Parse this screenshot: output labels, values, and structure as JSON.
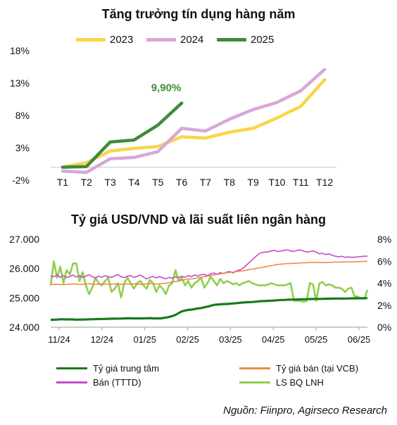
{
  "chart_data": [
    {
      "type": "line",
      "title": "Tăng trưởng tín dụng hàng năm",
      "categories": [
        "T1",
        "T2",
        "T3",
        "T4",
        "T5",
        "T6",
        "T7",
        "T8",
        "T9",
        "T10",
        "T11",
        "T12"
      ],
      "y_ticks": [
        "18%",
        "13%",
        "8%",
        "3%",
        "-2%"
      ],
      "ylim": [
        -2,
        18
      ],
      "series": [
        {
          "name": "2023",
          "color": "#F9D54A",
          "values": [
            0.0,
            0.7,
            2.5,
            2.9,
            3.2,
            4.7,
            4.5,
            5.4,
            6.0,
            7.6,
            9.4,
            13.5
          ]
        },
        {
          "name": "2024",
          "color": "#D8A7D8",
          "values": [
            -0.6,
            -0.8,
            1.3,
            1.5,
            2.4,
            6.0,
            5.6,
            7.4,
            8.9,
            10.0,
            11.8,
            15.1
          ]
        },
        {
          "name": "2025",
          "color": "#3F8B3A",
          "values": [
            0.0,
            0.1,
            3.9,
            4.2,
            6.5,
            9.9,
            null,
            null,
            null,
            null,
            null,
            null
          ]
        }
      ],
      "annotation": {
        "text": "9,90%",
        "color": "#3F8B3A"
      },
      "legend_position": "top"
    },
    {
      "type": "line",
      "title": "Tỷ giá USD/VND và lãi suất liên ngân hàng",
      "x_ticks": [
        "11/24",
        "12/24",
        "01/25",
        "02/25",
        "03/25",
        "04/25",
        "05/25",
        "06/25"
      ],
      "y_left_ticks": [
        "27.000",
        "26.000",
        "25.000",
        "24.000"
      ],
      "y_right_ticks": [
        "8%",
        "6%",
        "4%",
        "2%",
        "0%"
      ],
      "ylim_left": [
        24000,
        27000
      ],
      "ylim_right": [
        0,
        8
      ],
      "series": [
        {
          "name": "Tỷ giá trung tâm",
          "axis": "left",
          "color": "#1A7A1A",
          "values": [
            24250,
            24255,
            24260,
            24270,
            24268,
            24265,
            24270,
            24265,
            24258,
            24260,
            24262,
            24265,
            24268,
            24270,
            24275,
            24278,
            24280,
            24282,
            24285,
            24290,
            24290,
            24292,
            24295,
            24300,
            24303,
            24305,
            24300,
            24302,
            24300,
            24302,
            24305,
            24310,
            24300,
            24303,
            24300,
            24310,
            24330,
            24350,
            24380,
            24420,
            24480,
            24540,
            24570,
            24590,
            24600,
            24620,
            24640,
            24650,
            24680,
            24700,
            24730,
            24760,
            24770,
            24780,
            24790,
            24790,
            24800,
            24810,
            24820,
            24830,
            24840,
            24850,
            24855,
            24860,
            24870,
            24880,
            24890,
            24890,
            24900,
            24905,
            24910,
            24920,
            24930,
            24930,
            24935,
            24940,
            24940,
            24945,
            24950,
            24950,
            24955,
            24960,
            24962,
            24965,
            24966,
            24968,
            24970,
            24972,
            24975,
            24978,
            24980,
            24975,
            24978,
            24980,
            24982,
            24985,
            24985,
            24988,
            24990,
            24992
          ]
        },
        {
          "name": "Tỷ giá bán (tại VCB)",
          "axis": "left",
          "color": "#EE8B47",
          "values": [
            25450,
            25460,
            25460,
            25455,
            25450,
            25460,
            25470,
            25480,
            25470,
            25460,
            25465,
            25470,
            25480,
            25470,
            25460,
            25470,
            25480,
            25470,
            25465,
            25470,
            25475,
            25480,
            25460,
            25470,
            25475,
            25470,
            25480,
            25470,
            25460,
            25470,
            25480,
            25490,
            25480,
            25470,
            25480,
            25490,
            25500,
            25520,
            25540,
            25560,
            25580,
            25600,
            25620,
            25640,
            25650,
            25660,
            25680,
            25700,
            25720,
            25740,
            25760,
            25780,
            25800,
            25820,
            25840,
            25860,
            25870,
            25880,
            25900,
            25910,
            25920,
            25940,
            25960,
            25980,
            26000,
            26020,
            26040,
            26060,
            26080,
            26100,
            26120,
            26140,
            26150,
            26160,
            26170,
            26175,
            26180,
            26185,
            26190,
            26195,
            26200,
            26205,
            26210,
            26210,
            26205,
            26200,
            26205,
            26210,
            26215,
            26220,
            26220,
            26225,
            26230,
            26230,
            26225,
            26230,
            26235,
            26240,
            26245,
            26250
          ]
        },
        {
          "name": "Bán (TTTD)",
          "axis": "left",
          "color": "#C44BC9",
          "values": [
            25750,
            25720,
            25780,
            25700,
            25760,
            25690,
            25730,
            25780,
            25710,
            25760,
            25700,
            25740,
            25790,
            25720,
            25680,
            25740,
            25700,
            25760,
            25720,
            25700,
            25750,
            25800,
            25720,
            25690,
            25740,
            25760,
            25700,
            25730,
            25780,
            25710,
            25650,
            25700,
            25730,
            25680,
            25720,
            25690,
            25650,
            25700,
            25670,
            25720,
            25690,
            25740,
            25700,
            25760,
            25720,
            25780,
            25740,
            25790,
            25800,
            25760,
            25820,
            25850,
            25800,
            25860,
            25830,
            25880,
            25900,
            25850,
            25920,
            25950,
            26000,
            26100,
            26200,
            26300,
            26400,
            26500,
            26550,
            26560,
            26570,
            26600,
            26620,
            26580,
            26600,
            26620,
            26640,
            26600,
            26580,
            26620,
            26640,
            26600,
            26560,
            26580,
            26600,
            26560,
            26500,
            26520,
            26480,
            26500,
            26450,
            26420,
            26400,
            26420,
            26380,
            26400,
            26380,
            26390,
            26400,
            26410,
            26420,
            26430
          ]
        },
        {
          "name": "LS BQ LNH",
          "axis": "right",
          "color": "#8FCF4C",
          "values": [
            3.8,
            6.0,
            4.5,
            5.5,
            4.0,
            5.2,
            4.8,
            5.8,
            5.8,
            4.2,
            5.0,
            3.8,
            3.0,
            3.6,
            4.5,
            4.0,
            3.8,
            4.2,
            4.5,
            3.2,
            3.5,
            4.0,
            2.7,
            4.0,
            4.5,
            4.0,
            3.5,
            4.0,
            4.2,
            3.8,
            3.5,
            4.3,
            4.0,
            3.2,
            3.8,
            3.5,
            3.0,
            3.8,
            4.0,
            5.2,
            4.2,
            4.5,
            3.8,
            4.2,
            3.6,
            4.0,
            4.2,
            4.5,
            3.6,
            4.0,
            4.6,
            4.2,
            3.8,
            4.4,
            4.0,
            4.2,
            4.1,
            3.9,
            4.0,
            3.8,
            4.0,
            4.1,
            4.2,
            4.0,
            3.9,
            3.8,
            3.8,
            3.8,
            3.9,
            4.0,
            3.9,
            3.8,
            3.8,
            3.8,
            3.9,
            4.0,
            2.4,
            2.4,
            2.4,
            2.3,
            2.4,
            4.0,
            3.9,
            2.4,
            4.0,
            4.1,
            3.8,
            3.9,
            3.8,
            3.6,
            3.6,
            3.5,
            3.2,
            3.5,
            3.6,
            2.8,
            2.8,
            2.6,
            2.6,
            3.4
          ]
        }
      ]
    }
  ],
  "source": "Nguồn: Fiinpro, Agirseco Research"
}
